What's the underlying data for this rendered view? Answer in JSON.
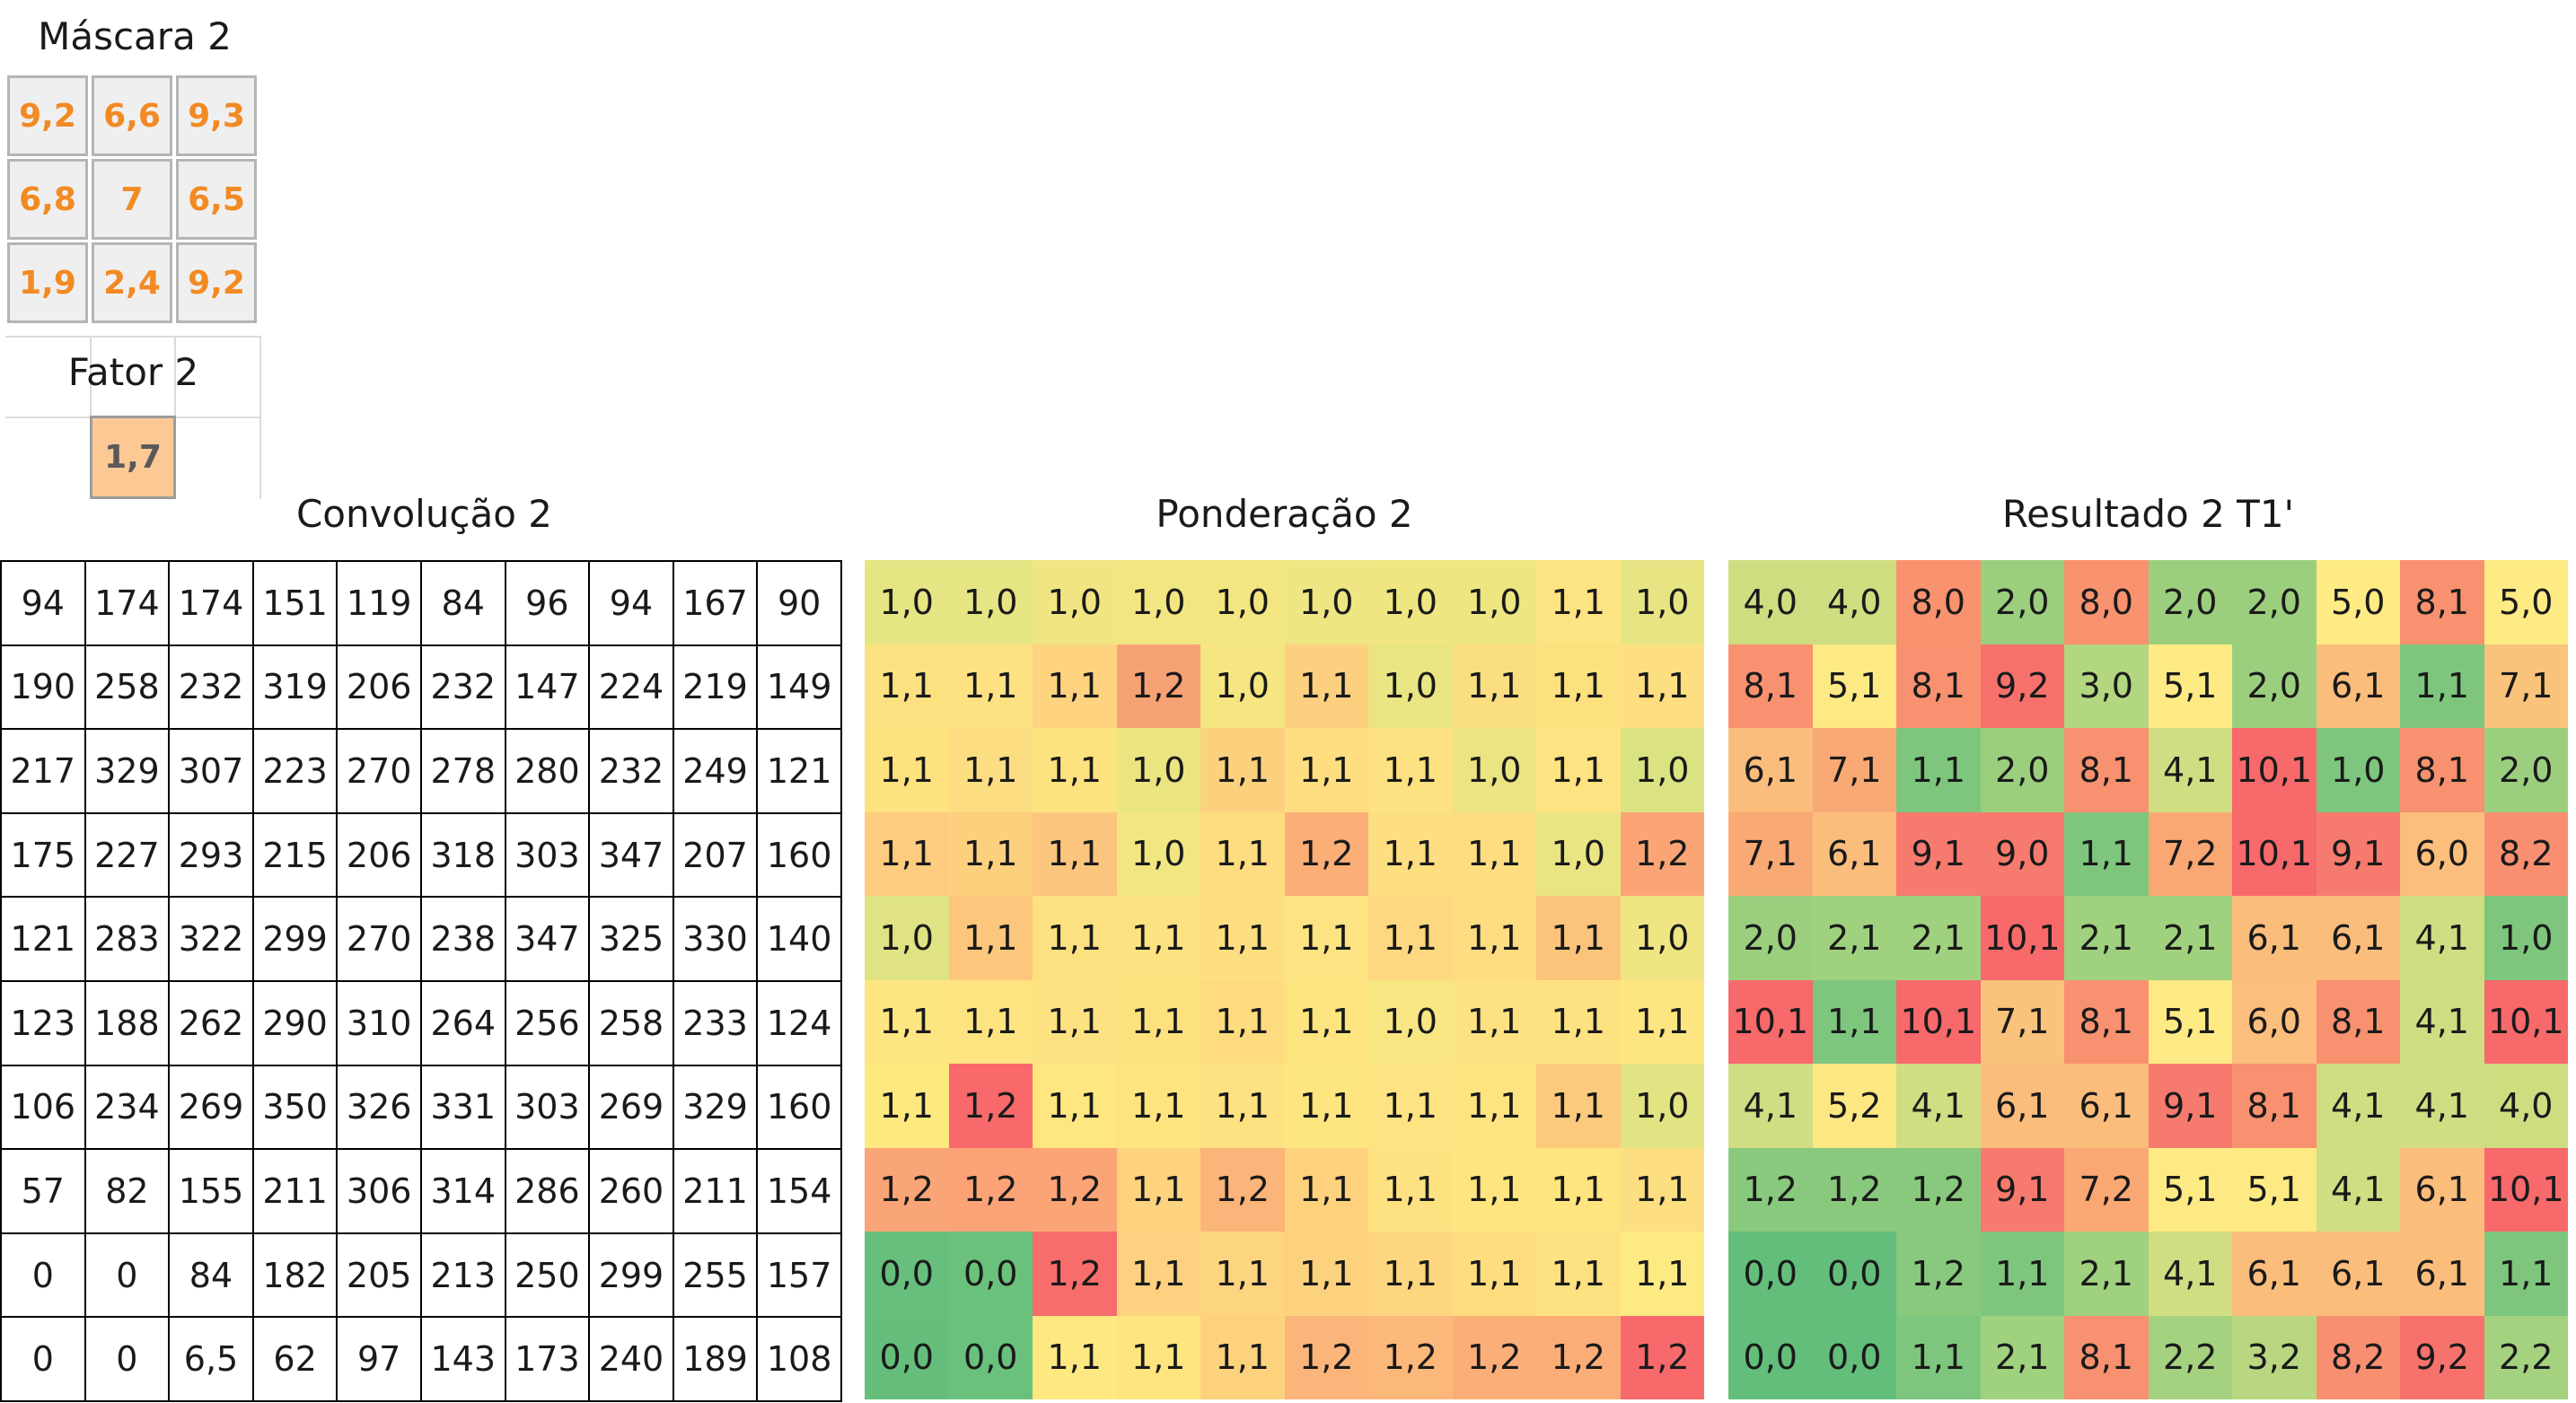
{
  "mask": {
    "title": "Máscara 2",
    "values": [
      [
        "9,2",
        "6,6",
        "9,3"
      ],
      [
        "6,8",
        "7",
        "6,5"
      ],
      [
        "1,9",
        "2,4",
        "9,2"
      ]
    ]
  },
  "factor": {
    "title": "Fator 2",
    "value": "1,7"
  },
  "convolution": {
    "title": "Convolução 2",
    "rows": [
      [
        "94",
        "174",
        "174",
        "151",
        "119",
        "84",
        "96",
        "94",
        "167",
        "90"
      ],
      [
        "190",
        "258",
        "232",
        "319",
        "206",
        "232",
        "147",
        "224",
        "219",
        "149"
      ],
      [
        "217",
        "329",
        "307",
        "223",
        "270",
        "278",
        "280",
        "232",
        "249",
        "121"
      ],
      [
        "175",
        "227",
        "293",
        "215",
        "206",
        "318",
        "303",
        "347",
        "207",
        "160"
      ],
      [
        "121",
        "283",
        "322",
        "299",
        "270",
        "238",
        "347",
        "325",
        "330",
        "140"
      ],
      [
        "123",
        "188",
        "262",
        "290",
        "310",
        "264",
        "256",
        "258",
        "233",
        "124"
      ],
      [
        "106",
        "234",
        "269",
        "350",
        "326",
        "331",
        "303",
        "269",
        "329",
        "160"
      ],
      [
        "57",
        "82",
        "155",
        "211",
        "306",
        "314",
        "286",
        "260",
        "211",
        "154"
      ],
      [
        "0",
        "0",
        "84",
        "182",
        "205",
        "213",
        "250",
        "299",
        "255",
        "157"
      ],
      [
        "0",
        "0",
        "6,5",
        "62",
        "97",
        "143",
        "173",
        "240",
        "189",
        "108"
      ]
    ]
  },
  "weighting": {
    "title": "Ponderação 2",
    "rows": [
      [
        "1,0",
        "1,0",
        "1,0",
        "1,0",
        "1,0",
        "1,0",
        "1,0",
        "1,0",
        "1,1",
        "1,0"
      ],
      [
        "1,1",
        "1,1",
        "1,1",
        "1,2",
        "1,0",
        "1,1",
        "1,0",
        "1,1",
        "1,1",
        "1,1"
      ],
      [
        "1,1",
        "1,1",
        "1,1",
        "1,0",
        "1,1",
        "1,1",
        "1,1",
        "1,0",
        "1,1",
        "1,0"
      ],
      [
        "1,1",
        "1,1",
        "1,1",
        "1,0",
        "1,1",
        "1,2",
        "1,1",
        "1,1",
        "1,0",
        "1,2"
      ],
      [
        "1,0",
        "1,1",
        "1,1",
        "1,1",
        "1,1",
        "1,1",
        "1,1",
        "1,1",
        "1,1",
        "1,0"
      ],
      [
        "1,1",
        "1,1",
        "1,1",
        "1,1",
        "1,1",
        "1,1",
        "1,0",
        "1,1",
        "1,1",
        "1,1"
      ],
      [
        "1,1",
        "1,2",
        "1,1",
        "1,1",
        "1,1",
        "1,1",
        "1,1",
        "1,1",
        "1,1",
        "1,0"
      ],
      [
        "1,2",
        "1,2",
        "1,2",
        "1,1",
        "1,2",
        "1,1",
        "1,1",
        "1,1",
        "1,1",
        "1,1"
      ],
      [
        "0,0",
        "0,0",
        "1,2",
        "1,1",
        "1,1",
        "1,1",
        "1,1",
        "1,1",
        "1,1",
        "1,1"
      ],
      [
        "0,0",
        "0,0",
        "1,1",
        "1,1",
        "1,1",
        "1,2",
        "1,2",
        "1,2",
        "1,2",
        "1,2"
      ]
    ],
    "colors": [
      [
        "#e5e584",
        "#e6e584",
        "#f0e582",
        "#f1e681",
        "#f3e681",
        "#ede683",
        "#efe682",
        "#eee681",
        "#fde482",
        "#e7e483"
      ],
      [
        "#fbe180",
        "#fee183",
        "#fdd37f",
        "#f7a274",
        "#f5e682",
        "#fcd07e",
        "#e9e583",
        "#fbde80",
        "#fde17f",
        "#fddf81"
      ],
      [
        "#fee280",
        "#fddd81",
        "#fde280",
        "#ebe581",
        "#fcd17e",
        "#fede80",
        "#fee180",
        "#ebe482",
        "#fde382",
        "#dbe282"
      ],
      [
        "#fdcc7e",
        "#fdd07e",
        "#fcc57d",
        "#f1e682",
        "#fedc80",
        "#fbae76",
        "#fdde80",
        "#fedd80",
        "#e9e582",
        "#fba577"
      ],
      [
        "#dfe383",
        "#fcc67d",
        "#fde181",
        "#fde281",
        "#fddf81",
        "#fde381",
        "#fed880",
        "#fedc81",
        "#fcc37b",
        "#efe582"
      ],
      [
        "#fde681",
        "#fee381",
        "#fee282",
        "#fee17f",
        "#fedb7f",
        "#fee47f",
        "#f7e682",
        "#fee181",
        "#fee281",
        "#fde681"
      ],
      [
        "#fee880",
        "#f9696b",
        "#fee680",
        "#fee37f",
        "#fee180",
        "#fde580",
        "#fee382",
        "#fee380",
        "#fcca7d",
        "#e2e383"
      ],
      [
        "#faa577",
        "#fba276",
        "#fba475",
        "#fdd37f",
        "#fbb479",
        "#fed27d",
        "#fee281",
        "#fee57f",
        "#fee57f",
        "#fdde80"
      ],
      [
        "#66bf7c",
        "#6ac17c",
        "#f76d6c",
        "#fcd180",
        "#fdd47f",
        "#fcd27e",
        "#fed67f",
        "#fedd7f",
        "#fee181",
        "#feea83"
      ],
      [
        "#65be7b",
        "#69c17d",
        "#fee882",
        "#fee580",
        "#fcd27d",
        "#fbb57a",
        "#fcb77a",
        "#fbaf78",
        "#fbad77",
        "#f8696b"
      ]
    ]
  },
  "result": {
    "title": "Resultado 2 T1'",
    "rows": [
      [
        "4,0",
        "4,0",
        "8,0",
        "2,0",
        "8,0",
        "2,0",
        "2,0",
        "5,0",
        "8,1",
        "5,0"
      ],
      [
        "8,1",
        "5,1",
        "8,1",
        "9,2",
        "3,0",
        "5,1",
        "2,0",
        "6,1",
        "1,1",
        "7,1"
      ],
      [
        "6,1",
        "7,1",
        "1,1",
        "2,0",
        "8,1",
        "4,1",
        "10,1",
        "1,0",
        "8,1",
        "2,0"
      ],
      [
        "7,1",
        "6,1",
        "9,1",
        "9,0",
        "1,1",
        "7,2",
        "10,1",
        "9,1",
        "6,0",
        "8,2"
      ],
      [
        "2,0",
        "2,1",
        "2,1",
        "10,1",
        "2,1",
        "2,1",
        "6,1",
        "6,1",
        "4,1",
        "1,0"
      ],
      [
        "10,1",
        "1,1",
        "10,1",
        "7,1",
        "8,1",
        "5,1",
        "6,0",
        "8,1",
        "4,1",
        "10,1"
      ],
      [
        "4,1",
        "5,2",
        "4,1",
        "6,1",
        "6,1",
        "9,1",
        "8,1",
        "4,1",
        "4,1",
        "4,0"
      ],
      [
        "1,2",
        "1,2",
        "1,2",
        "9,1",
        "7,2",
        "5,1",
        "5,1",
        "4,1",
        "6,1",
        "10,1"
      ],
      [
        "0,0",
        "0,0",
        "1,2",
        "1,1",
        "2,1",
        "4,1",
        "6,1",
        "6,1",
        "6,1",
        "1,1"
      ],
      [
        "0,0",
        "0,0",
        "1,1",
        "2,1",
        "8,1",
        "2,2",
        "3,2",
        "8,2",
        "9,2",
        "2,2"
      ]
    ],
    "colors": [
      [
        "#cfdd81",
        "#cfdd81",
        "#f8926f",
        "#9bcf7e",
        "#f8926f",
        "#9bcf7e",
        "#9bcf7e",
        "#feeb84",
        "#f8916f",
        "#feeb84"
      ],
      [
        "#f8916f",
        "#feea84",
        "#f8916f",
        "#f7716c",
        "#b3d680",
        "#feea84",
        "#9bcf7e",
        "#fbbd7c",
        "#7ec67d",
        "#fac37b"
      ],
      [
        "#fbbd7c",
        "#f9a974",
        "#7ec67d",
        "#9bcf7e",
        "#f8916f",
        "#d0dd82",
        "#f7696b",
        "#7ec67d",
        "#f8916f",
        "#9bcf7e"
      ],
      [
        "#f9a974",
        "#fbbd7c",
        "#f77a6e",
        "#f77a6e",
        "#7ec67d",
        "#f9a773",
        "#f7696b",
        "#f77a6e",
        "#fbbe7c",
        "#f88f70"
      ],
      [
        "#9bcf7e",
        "#a0d17f",
        "#a0d17f",
        "#f7696b",
        "#a0d17f",
        "#a0d17f",
        "#fbbd7c",
        "#fbbd7c",
        "#d0dd82",
        "#7ec67d"
      ],
      [
        "#f7696b",
        "#7ec67d",
        "#f7696b",
        "#fac37b",
        "#f8916f",
        "#feea84",
        "#fbbe7c",
        "#f8916f",
        "#d0dd82",
        "#f7696b"
      ],
      [
        "#d0dd82",
        "#fde783",
        "#d0dd82",
        "#fbbd7c",
        "#fbbd7c",
        "#f77a6e",
        "#f8916f",
        "#d0dd82",
        "#d0dd82",
        "#cfdd81"
      ],
      [
        "#89c97d",
        "#89c97d",
        "#89c97d",
        "#f77a6e",
        "#f9a773",
        "#feea84",
        "#feea84",
        "#d0dd82",
        "#fbbd7c",
        "#f7696b"
      ],
      [
        "#63be7b",
        "#63be7b",
        "#89c97d",
        "#7ec67d",
        "#a0d17f",
        "#d0dd82",
        "#fbbd7c",
        "#fbbd7c",
        "#fbbd7c",
        "#7ec67d"
      ],
      [
        "#63be7b",
        "#63be7b",
        "#7ec67d",
        "#a0d17f",
        "#f8916f",
        "#a4d27f",
        "#b8d780",
        "#f88f70",
        "#f7726c",
        "#a4d27f"
      ]
    ]
  }
}
